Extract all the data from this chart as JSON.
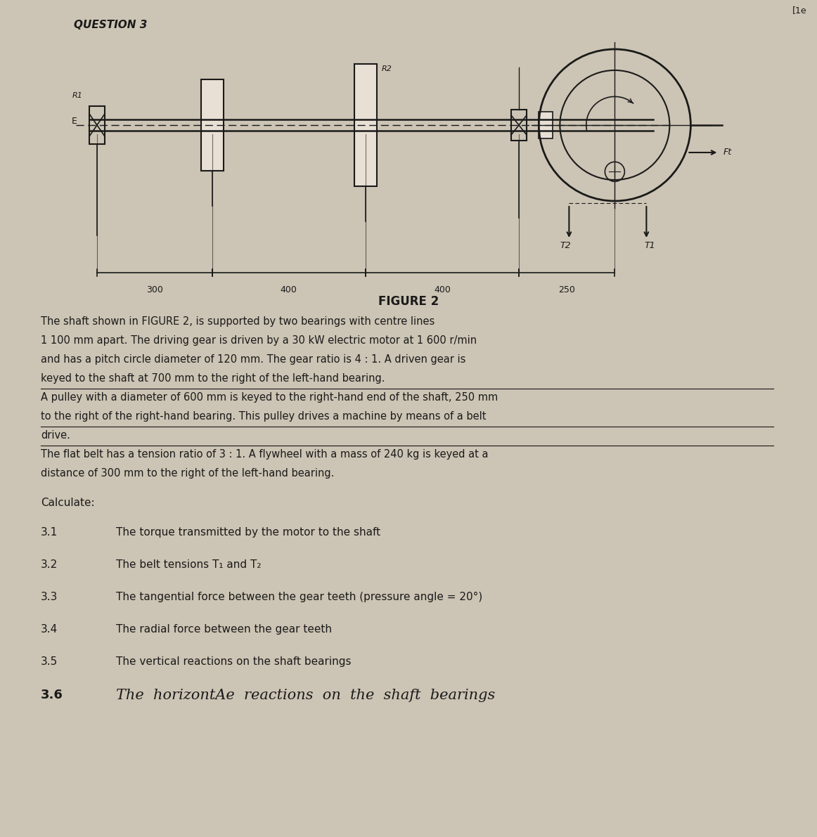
{
  "bg_color": "#ccc4b4",
  "title_question": "QUESTION 3",
  "figure_label": "FIGURE 2",
  "corner_text": "[1e",
  "para1": "The shaft shown in FIGURE 2, is supported by two bearings with centre lines",
  "para2": "1 100 mm apart. The driving gear is driven by a 30 kW electric motor at 1 600 r/min",
  "para3": "and has a pitch circle diameter of 120 mm. The gear ratio is 4 : 1. A driven gear is",
  "para4": "keyed to the shaft at 700 mm to the right of the left-hand bearing.",
  "para5": "A pulley with a diameter of 600 mm is keyed to the right-hand end of the shaft, 250 mm",
  "para6": "to the right of the right-hand bearing. This pulley drives a machine by means of a belt",
  "para7": "drive.",
  "para8": "The flat belt has a tension ratio of 3 : 1. A flywheel with a mass of 240 kg is keyed at a",
  "para9": "distance of 300 mm to the right of the left-hand bearing.",
  "calculate_label": "Calculate:",
  "items": [
    {
      "num": "3.1",
      "text": "The torque transmitted by the motor to the shaft"
    },
    {
      "num": "3.2",
      "text": "The belt tensions T₁ and T₂"
    },
    {
      "num": "3.3",
      "text": "The tangential force between the gear teeth (pressure angle = 20°)"
    },
    {
      "num": "3.4",
      "text": "The radial force between the gear teeth"
    },
    {
      "num": "3.5",
      "text": "The vertical reactions on the shaft bearings"
    }
  ],
  "item_36_num": "3.6",
  "item_36_text": "The  horizontAe  reactions  on  the  shaft  bearings",
  "dim_labels": [
    "300",
    "400",
    "400",
    "250"
  ]
}
